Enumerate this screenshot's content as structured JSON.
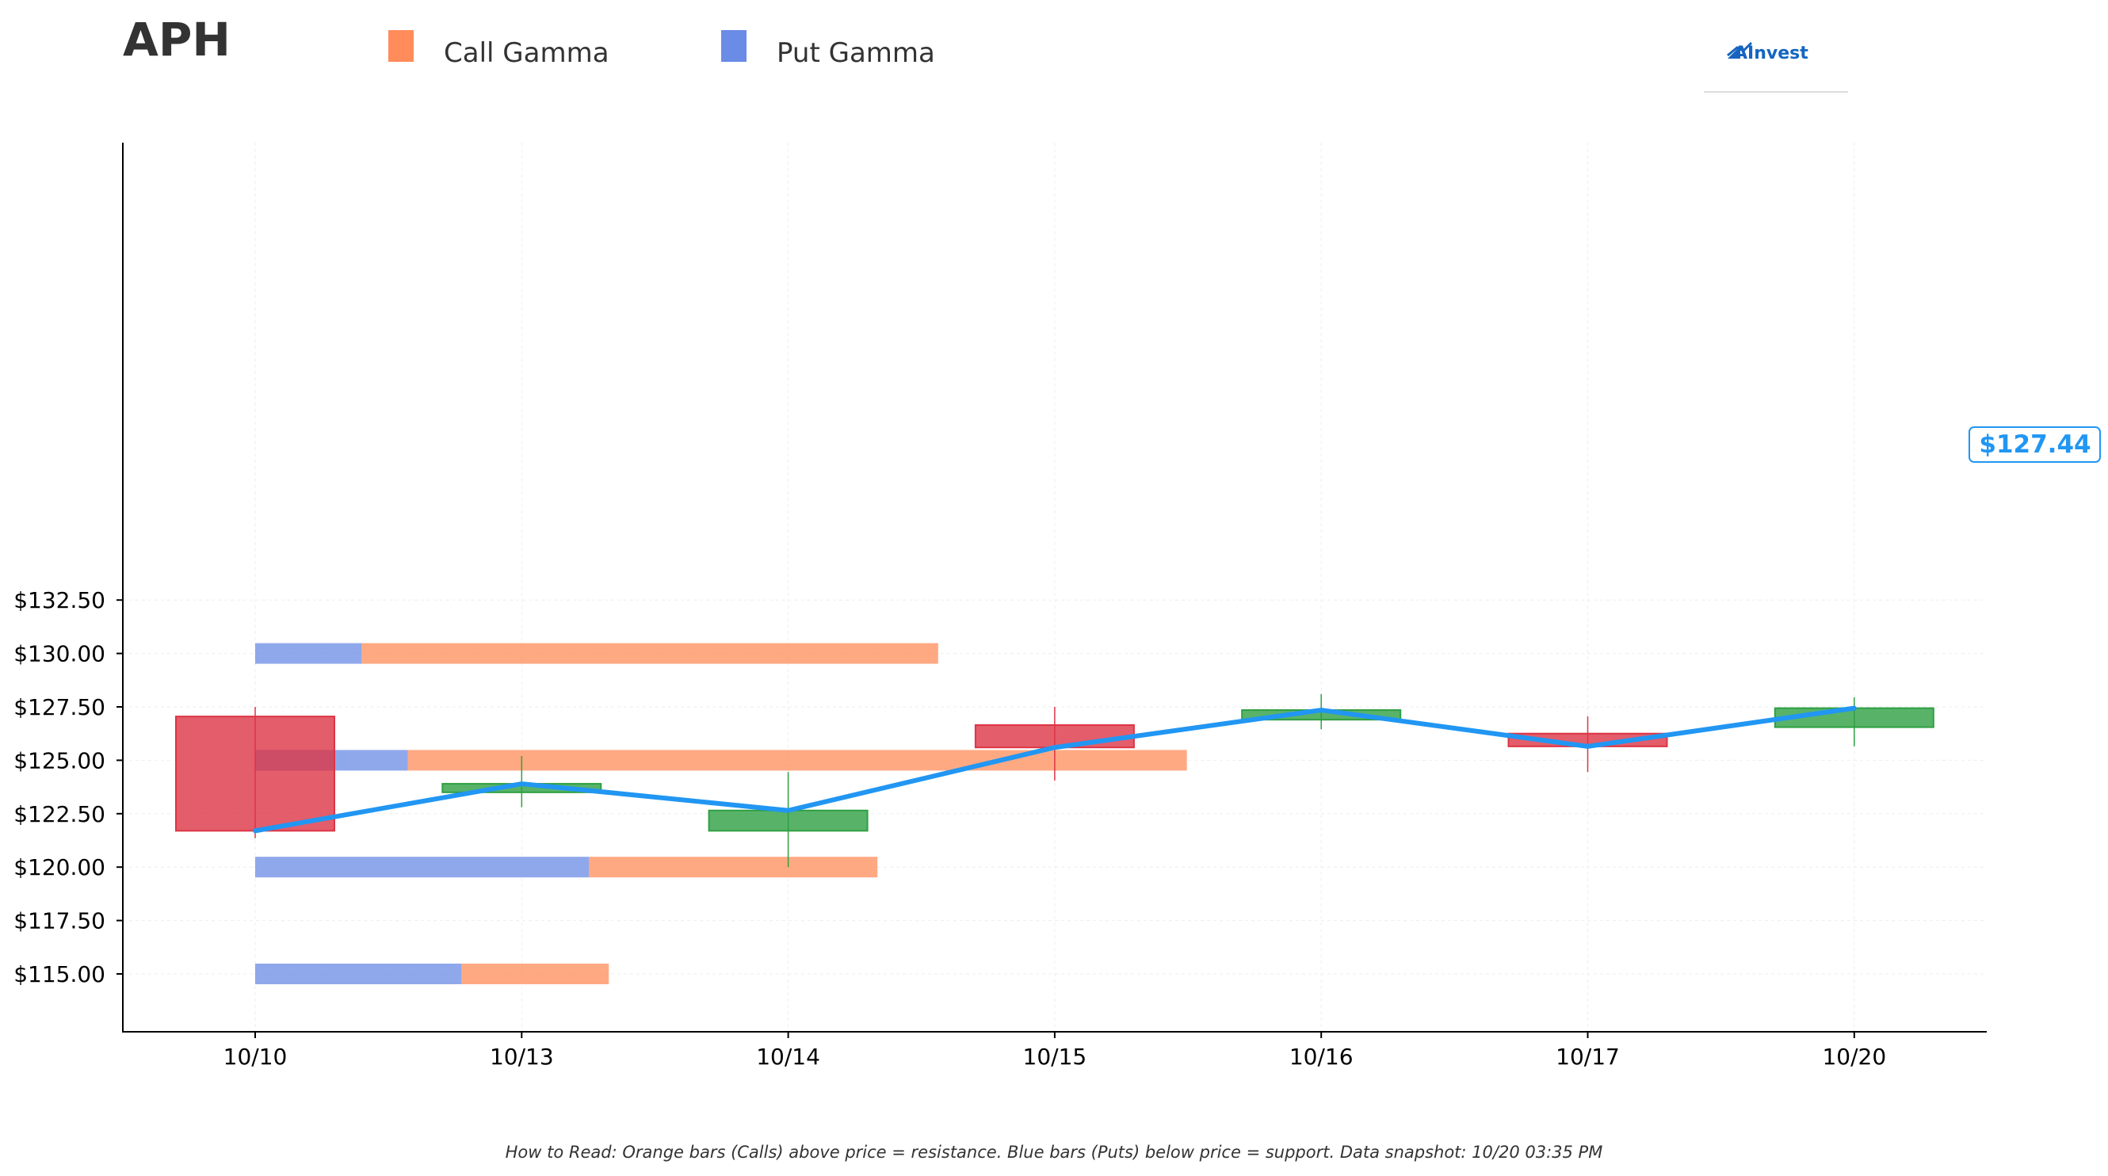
{
  "chart_data": {
    "type": "candlestick",
    "title": "APH",
    "legend": {
      "placement": "top",
      "entries": [
        {
          "name": "Call Gamma",
          "color": "#ff8c5a"
        },
        {
          "name": "Put Gamma",
          "color": "#6a8be6"
        }
      ]
    },
    "categories": [
      "10/10",
      "10/13",
      "10/14",
      "10/15",
      "10/16",
      "10/17",
      "10/20"
    ],
    "ohlc": [
      {
        "date": "10/10",
        "open": 127.05,
        "high": 127.5,
        "low": 121.35,
        "close": 121.7
      },
      {
        "date": "10/13",
        "open": 123.5,
        "high": 125.2,
        "low": 122.8,
        "close": 123.9
      },
      {
        "date": "10/14",
        "open": 121.7,
        "high": 124.45,
        "low": 120.0,
        "close": 122.65
      },
      {
        "date": "10/15",
        "open": 126.65,
        "high": 127.5,
        "low": 124.05,
        "close": 125.6
      },
      {
        "date": "10/16",
        "open": 126.9,
        "high": 128.1,
        "low": 126.45,
        "close": 127.35
      },
      {
        "date": "10/17",
        "open": 126.25,
        "high": 127.05,
        "low": 124.45,
        "close": 125.65
      },
      {
        "date": "10/20",
        "open": 126.55,
        "high": 127.95,
        "low": 125.65,
        "close": 127.44
      }
    ],
    "close_line": [
      121.7,
      123.9,
      122.65,
      125.6,
      127.35,
      125.65,
      127.44
    ],
    "gamma_levels": [
      {
        "strike": 130.0,
        "put_gamma": 0.4,
        "call_gamma": 2.165
      },
      {
        "strike": 125.0,
        "put_gamma": 0.573,
        "call_gamma": 2.926
      },
      {
        "strike": 120.0,
        "put_gamma": 1.254,
        "call_gamma": 1.083
      },
      {
        "strike": 115.0,
        "put_gamma": 0.775,
        "call_gamma": 0.553
      }
    ],
    "yticks": [
      "$115.00",
      "$117.50",
      "$120.00",
      "$122.50",
      "$125.00",
      "$127.50",
      "$130.00",
      "$132.50"
    ],
    "ylim": [
      113.6,
      134.5
    ],
    "grid": true,
    "current_price_label": "$127.44",
    "colors": {
      "up": "#2ea043",
      "down": "#dc3545",
      "close_line": "#2196f3",
      "call": "#ff8c5a",
      "put": "#6a8be6"
    }
  },
  "logo": {
    "text": "AInvest"
  },
  "footnote": "How to Read: Orange bars (Calls) above price = resistance. Blue bars (Puts) below price = support. Data snapshot: 10/20 03:35 PM"
}
